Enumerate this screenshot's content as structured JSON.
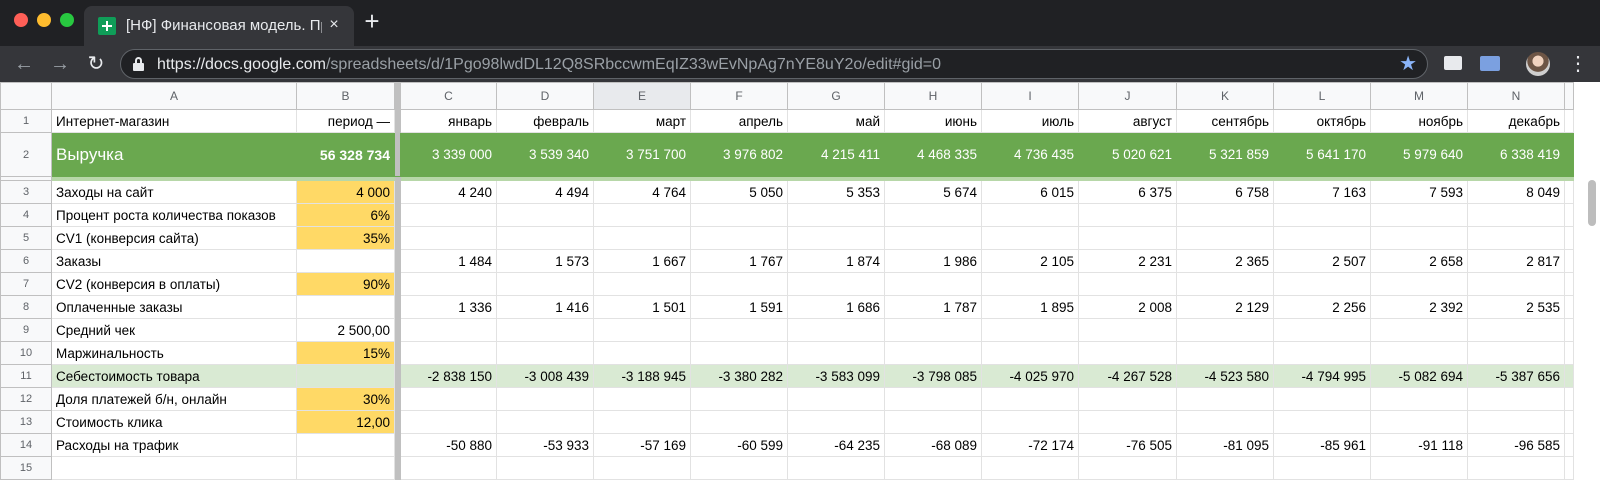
{
  "browser": {
    "tab_title": "[НФ] Финансовая модель. Пр",
    "tab_close": "×",
    "new_tab": "+",
    "url_host": "https://docs.google.com",
    "url_path": "/spreadsheets/d/1Pgo98lwdDL12Q8SRbccwmEqIZ33wEvNpAg7nYE8uY2o/edit#gid=0",
    "back": "←",
    "forward": "→",
    "reload": "↻",
    "star": "★",
    "menu": "⋮"
  },
  "sheet": {
    "columns": [
      "A",
      "B",
      "C",
      "D",
      "E",
      "F",
      "G",
      "H",
      "I",
      "J",
      "K",
      "L",
      "M",
      "N"
    ],
    "rows": [
      {
        "n": "1",
        "a": "Интернет-магазин",
        "b": "период —",
        "vals": [
          "январь",
          "февраль",
          "март",
          "апрель",
          "май",
          "июнь",
          "июль",
          "август",
          "сентябрь",
          "октябрь",
          "ноябрь",
          "декабрь"
        ]
      },
      {
        "n": "2",
        "a": "Выручка",
        "b": "56 328 734",
        "vals": [
          "3 339 000",
          "3 539 340",
          "3 751 700",
          "3 976 802",
          "4 215 411",
          "4 468 335",
          "4 736 435",
          "5 020 621",
          "5 321 859",
          "5 641 170",
          "5 979 640",
          "6 338 419"
        ]
      },
      {
        "n": "3",
        "a": "Заходы на сайт",
        "b": "4 000",
        "vals": [
          "4 240",
          "4 494",
          "4 764",
          "5 050",
          "5 353",
          "5 674",
          "6 015",
          "6 375",
          "6 758",
          "7 163",
          "7 593",
          "8 049"
        ]
      },
      {
        "n": "4",
        "a": "Процент роста количества показов",
        "b": "6%",
        "vals": [
          "",
          "",
          "",
          "",
          "",
          "",
          "",
          "",
          "",
          "",
          "",
          ""
        ]
      },
      {
        "n": "5",
        "a": "CV1 (конверсия сайта)",
        "b": "35%",
        "vals": [
          "",
          "",
          "",
          "",
          "",
          "",
          "",
          "",
          "",
          "",
          "",
          ""
        ]
      },
      {
        "n": "6",
        "a": "Заказы",
        "b": "",
        "vals": [
          "1 484",
          "1 573",
          "1 667",
          "1 767",
          "1 874",
          "1 986",
          "2 105",
          "2 231",
          "2 365",
          "2 507",
          "2 658",
          "2 817"
        ]
      },
      {
        "n": "7",
        "a": "CV2 (конверсия в оплаты)",
        "b": "90%",
        "vals": [
          "",
          "",
          "",
          "",
          "",
          "",
          "",
          "",
          "",
          "",
          "",
          ""
        ]
      },
      {
        "n": "8",
        "a": "Оплаченные заказы",
        "b": "",
        "vals": [
          "1 336",
          "1 416",
          "1 501",
          "1 591",
          "1 686",
          "1 787",
          "1 895",
          "2 008",
          "2 129",
          "2 256",
          "2 392",
          "2 535"
        ]
      },
      {
        "n": "9",
        "a": "Средний чек",
        "b": "2 500,00",
        "vals": [
          "",
          "",
          "",
          "",
          "",
          "",
          "",
          "",
          "",
          "",
          "",
          ""
        ]
      },
      {
        "n": "10",
        "a": "Маржинальность",
        "b": "15%",
        "vals": [
          "",
          "",
          "",
          "",
          "",
          "",
          "",
          "",
          "",
          "",
          "",
          ""
        ]
      },
      {
        "n": "11",
        "a": "Себестоимость товара",
        "b": "",
        "vals": [
          "-2 838 150",
          "-3 008 439",
          "-3 188 945",
          "-3 380 282",
          "-3 583 099",
          "-3 798 085",
          "-4 025 970",
          "-4 267 528",
          "-4 523 580",
          "-4 794 995",
          "-5 082 694",
          "-5 387 656"
        ]
      },
      {
        "n": "12",
        "a": "Доля платежей б/н, онлайн",
        "b": "30%",
        "vals": [
          "",
          "",
          "",
          "",
          "",
          "",
          "",
          "",
          "",
          "",
          "",
          ""
        ]
      },
      {
        "n": "13",
        "a": "Стоимость клика",
        "b": "12,00",
        "vals": [
          "",
          "",
          "",
          "",
          "",
          "",
          "",
          "",
          "",
          "",
          "",
          ""
        ]
      },
      {
        "n": "14",
        "a": "Расходы на трафик",
        "b": "",
        "vals": [
          "-50 880",
          "-53 933",
          "-57 169",
          "-60 599",
          "-64 235",
          "-68 089",
          "-72 174",
          "-76 505",
          "-81 095",
          "-85 961",
          "-91 118",
          "-96 585"
        ]
      },
      {
        "n": "15",
        "a": "",
        "b": "",
        "vals": [
          "",
          "",
          "",
          "",
          "",
          "",
          "",
          "",
          "",
          "",
          "",
          ""
        ]
      }
    ],
    "styles": {
      "revenue_green": "#6aa84f",
      "input_yellow": "#ffd966",
      "cost_green": "#d9ead3"
    },
    "active_column": "E"
  }
}
